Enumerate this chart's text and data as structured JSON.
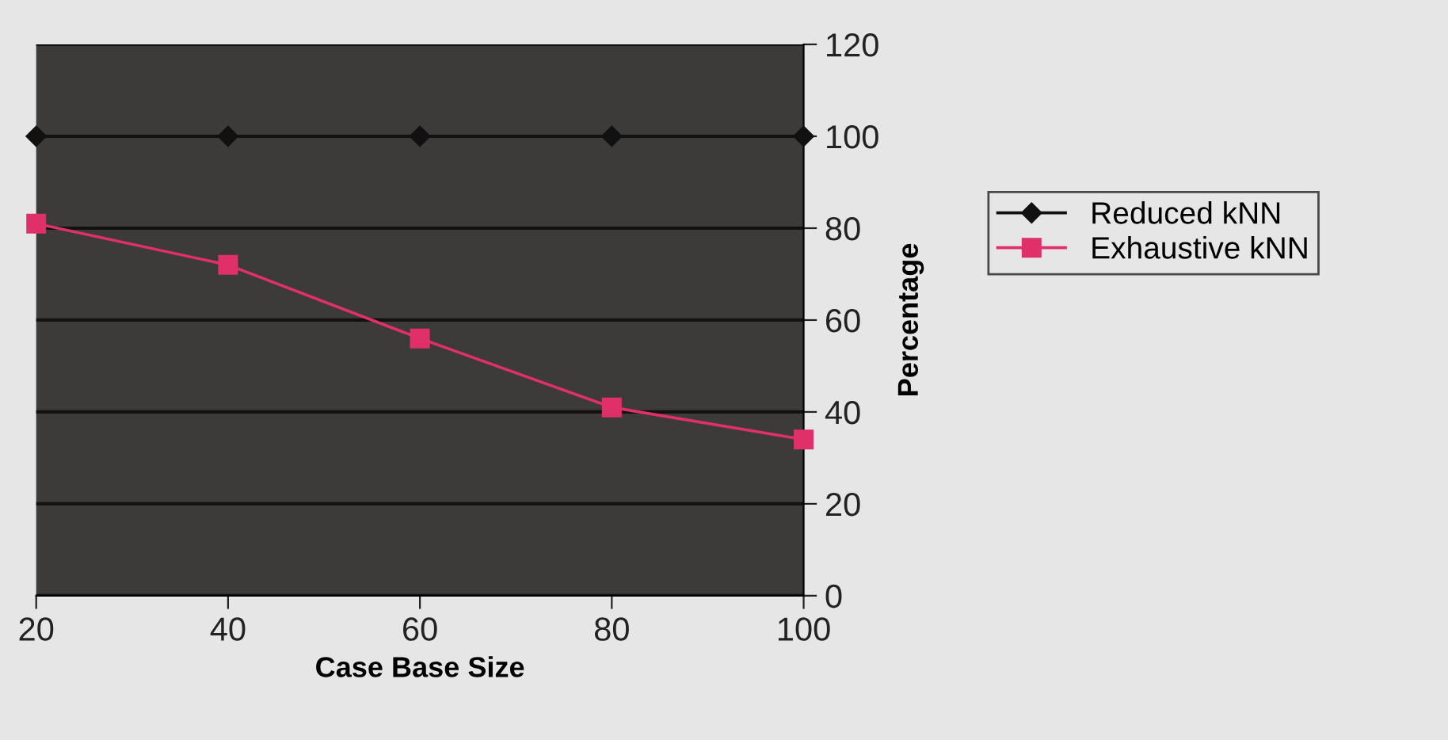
{
  "chart_data": {
    "type": "line",
    "xlabel": "Case Base Size",
    "ylabel": "Percentage",
    "x": [
      20,
      40,
      60,
      80,
      100
    ],
    "series": [
      {
        "name": "Reduced kNN",
        "color": "#111111",
        "marker": "diamond",
        "values": [
          100,
          100,
          100,
          100,
          100
        ]
      },
      {
        "name": "Exhaustive kNN",
        "color": "#e0306a",
        "marker": "square",
        "values": [
          81,
          72,
          56,
          41,
          34
        ]
      }
    ],
    "xlim": [
      20,
      100
    ],
    "xticks": [
      20,
      40,
      60,
      80,
      100
    ],
    "ylim": [
      0,
      120
    ],
    "yticks": [
      0,
      20,
      40,
      60,
      80,
      100,
      120
    ],
    "grid": "y",
    "legend": "right",
    "line_style": "solid"
  }
}
